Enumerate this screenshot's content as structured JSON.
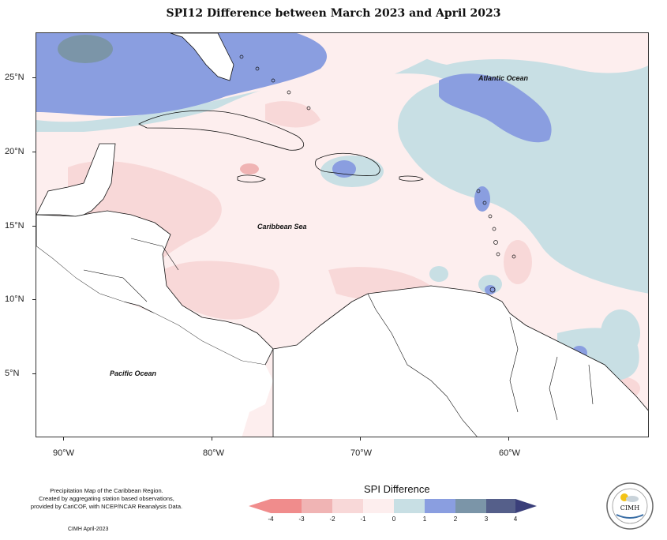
{
  "title": "SPI12 Difference between March 2023 and April 2023",
  "axes": {
    "lat_labels": [
      "25°N",
      "20°N",
      "15°N",
      "10°N",
      "5°N"
    ],
    "lon_labels": [
      "90°W",
      "80°W",
      "70°W",
      "60°W"
    ]
  },
  "labels": {
    "atlantic": "Atlantic Ocean",
    "caribbean": "Caribbean Sea",
    "pacific": "Pacific Ocean"
  },
  "credits": {
    "line1": "Precipitation Map of the Caribbean Region.",
    "line2": "Created by aggregating station based observations,",
    "line3": "provided by CariCOF, with NCEP/NCAR Reanalysis Data.",
    "date": "CIMH April-2023"
  },
  "legend": {
    "title": "SPI Difference",
    "ticks": [
      "-4",
      "-3",
      "-2",
      "-1",
      "0",
      "1",
      "2",
      "3",
      "4"
    ],
    "colors": [
      "#f08c8c",
      "#f0b4b4",
      "#f8d8d8",
      "#fdeeee",
      "#c8dfe4",
      "#8a9ee0",
      "#7b95a8",
      "#555f8a"
    ]
  },
  "logo": {
    "text": "CIMH"
  }
}
